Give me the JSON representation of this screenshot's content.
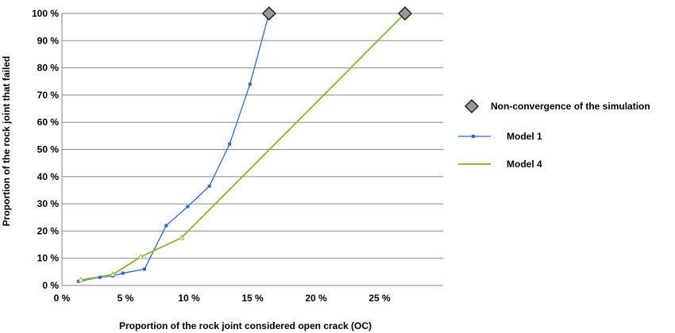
{
  "chart_data": {
    "type": "line",
    "xlabel": "Proportion of the rock joint considered open crack (OC)",
    "ylabel": "Proportion of the rock joint that failed",
    "x_ticks": [
      "0 %",
      "5 %",
      "10 %",
      "15 %",
      "20 %",
      "25 %"
    ],
    "y_ticks": [
      "0 %",
      "10 %",
      "20 %",
      "30 %",
      "40 %",
      "50 %",
      "60 %",
      "70 %",
      "80 %",
      "90 %",
      "100 %"
    ],
    "xlim": [
      0,
      30
    ],
    "ylim": [
      0,
      100
    ],
    "grid": "horizontal",
    "legend_position": "right",
    "series": [
      {
        "name": "Model 1",
        "color": "#3366cc",
        "marker": "square",
        "x": [
          1.3,
          3.0,
          4.0,
          4.8,
          6.5,
          8.2,
          9.9,
          11.6,
          13.2,
          14.8,
          16.3
        ],
        "y": [
          1.5,
          3.0,
          3.5,
          4.5,
          6.0,
          22.0,
          29.0,
          36.5,
          52.0,
          74.0,
          100.0
        ]
      },
      {
        "name": "Model 4",
        "color": "#8db843",
        "marker": "triangle",
        "x": [
          1.5,
          4.0,
          6.2,
          9.4,
          27.0
        ],
        "y": [
          2.0,
          4.0,
          10.5,
          17.5,
          100.0
        ]
      }
    ],
    "non_convergence": {
      "name": "Non-convergence of the simulation",
      "marker": "diamond",
      "color": "#999999",
      "points": [
        {
          "x": 16.3,
          "y": 100.0
        },
        {
          "x": 27.0,
          "y": 100.0
        }
      ]
    }
  }
}
